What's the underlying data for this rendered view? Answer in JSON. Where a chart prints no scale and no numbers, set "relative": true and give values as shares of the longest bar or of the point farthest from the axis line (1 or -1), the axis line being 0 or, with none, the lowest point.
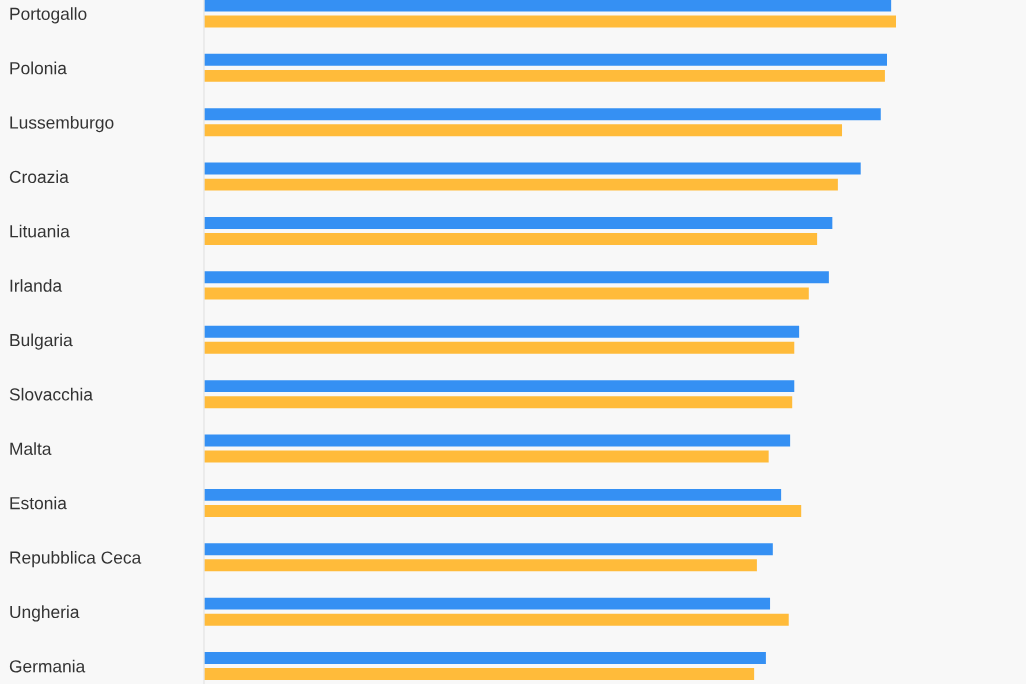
{
  "chart_data": {
    "type": "bar",
    "orientation": "horizontal",
    "relative": true,
    "legend": false,
    "grid": false,
    "categories": [
      "Portogallo",
      "Polonia",
      "Lussemburgo",
      "Croazia",
      "Lituania",
      "Irlanda",
      "Bulgaria",
      "Slovacchia",
      "Malta",
      "Estonia",
      "Repubblica Ceca",
      "Ungheria",
      "Germania"
    ],
    "series": [
      {
        "color": "#3590f3",
        "values": [
          0.993,
          0.987,
          0.978,
          0.949,
          0.908,
          0.903,
          0.86,
          0.853,
          0.847,
          0.834,
          0.822,
          0.818,
          0.812
        ]
      },
      {
        "color": "#ffbb3a",
        "values": [
          1.0,
          0.984,
          0.922,
          0.916,
          0.886,
          0.874,
          0.853,
          0.85,
          0.816,
          0.863,
          0.799,
          0.845,
          0.795
        ]
      }
    ]
  }
}
